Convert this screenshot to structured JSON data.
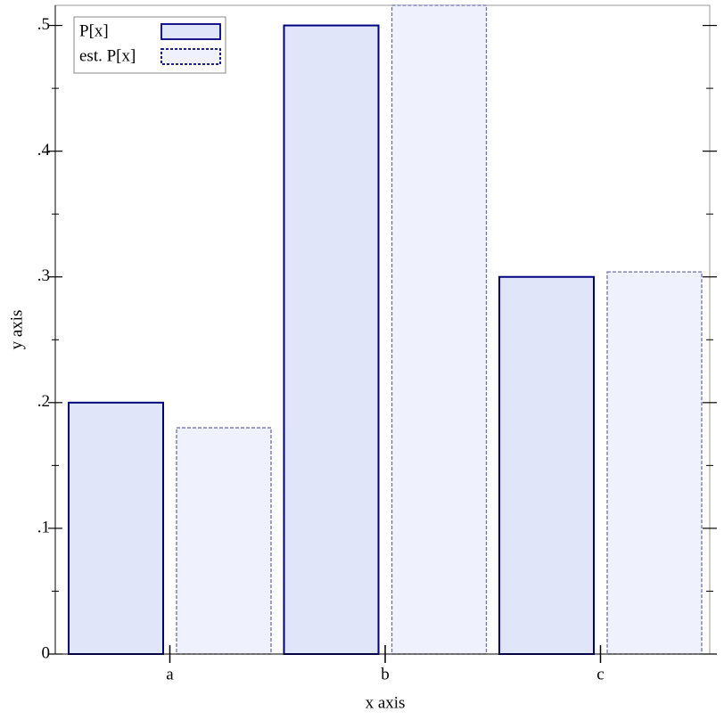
{
  "chart_data": {
    "type": "bar",
    "xlabel": "x axis",
    "ylabel": "y axis",
    "categories": [
      "a",
      "b",
      "c"
    ],
    "series": [
      {
        "name": "P[x]",
        "color": "#e0e5fa",
        "stroke": "#00007f",
        "dash": false,
        "values": [
          0.2,
          0.5,
          0.3
        ]
      },
      {
        "name": "est. P[x]",
        "color": "#eff2fc",
        "stroke": "#6f6fab",
        "dash": true,
        "values": [
          0.18,
          0.516,
          0.304
        ]
      }
    ],
    "ylim": [
      0,
      0.516
    ],
    "yticks": [
      0,
      {
        "value": 0.1,
        "label": ".1"
      },
      {
        "value": 0.2,
        "label": ".2"
      },
      {
        "value": 0.3,
        "label": ".3"
      },
      {
        "value": 0.4,
        "label": ".4"
      },
      {
        "value": 0.5,
        "label": ".5"
      }
    ],
    "yminorticks": [
      0.05,
      0.15,
      0.25,
      0.35,
      0.45
    ],
    "legend": "top-left"
  }
}
